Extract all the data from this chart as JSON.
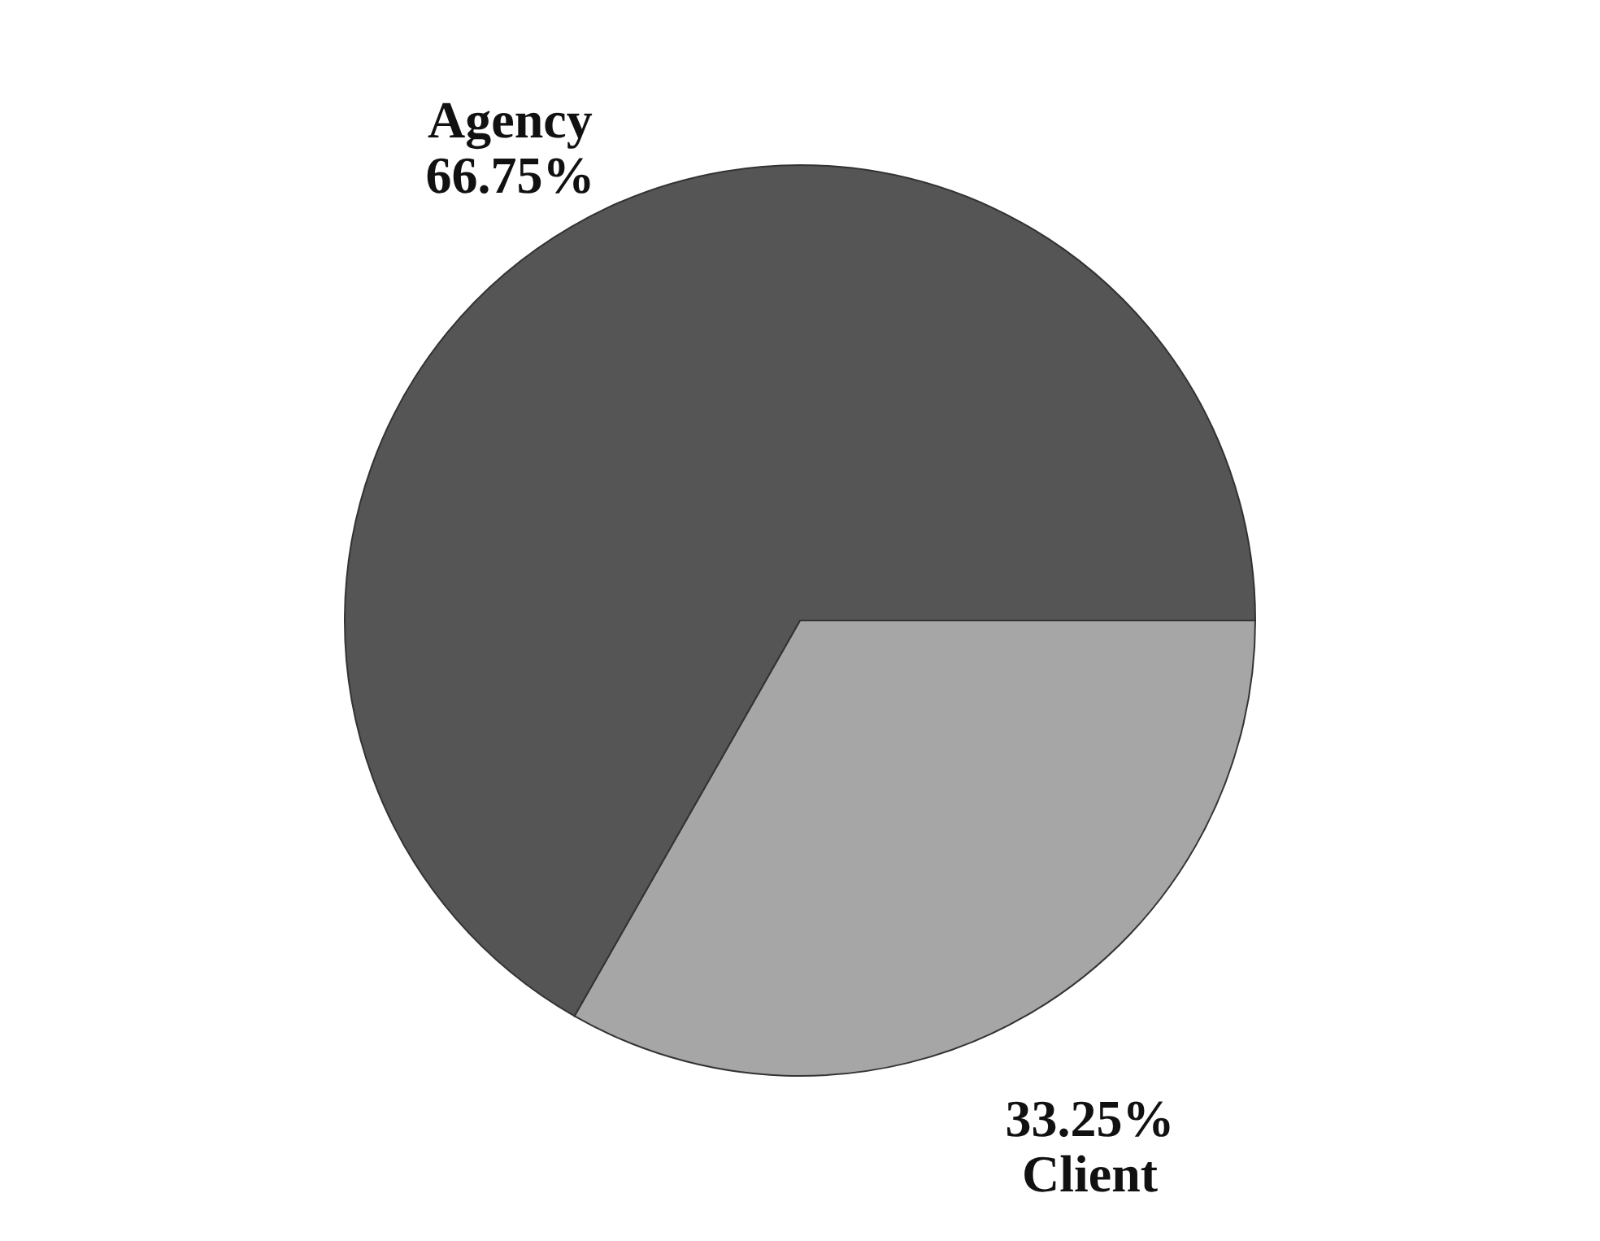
{
  "chart_data": {
    "type": "pie",
    "categories": [
      "Client",
      "Agency"
    ],
    "values": [
      33.25,
      66.75
    ],
    "colors": [
      "#a6a6a6",
      "#555555"
    ],
    "value_labels": [
      "33.25%",
      "66.75%"
    ],
    "legend": false
  }
}
